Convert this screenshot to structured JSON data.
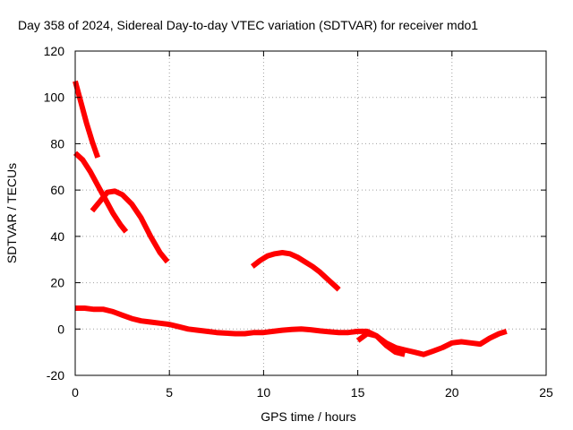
{
  "chart_data": {
    "type": "line",
    "title": "Day 358 of 2024, Sidereal Day-to-day VTEC variation (SDTVAR) for receiver mdo1",
    "xlabel": "GPS time / hours",
    "ylabel": "SDTVAR / TECUs",
    "xlim": [
      0,
      25
    ],
    "ylim": [
      -20,
      120
    ],
    "xticks": [
      0,
      5,
      10,
      15,
      20,
      25
    ],
    "yticks": [
      -20,
      0,
      20,
      40,
      60,
      80,
      100,
      120
    ],
    "grid": true,
    "series_color": "#ff0000",
    "series": [
      {
        "name": "arc-1",
        "x": [
          0.0,
          0.3,
          0.6,
          0.9,
          1.2
        ],
        "y": [
          107,
          98,
          89,
          81,
          74
        ]
      },
      {
        "name": "arc-2",
        "x": [
          0.0,
          0.4,
          0.8,
          1.2,
          1.6,
          2.0,
          2.4,
          2.7
        ],
        "y": [
          76,
          73,
          68,
          62,
          56,
          50,
          45,
          42
        ]
      },
      {
        "name": "arc-3",
        "x": [
          0.9,
          1.3,
          1.7,
          2.1,
          2.5,
          3.0,
          3.5,
          4.0,
          4.5,
          4.9
        ],
        "y": [
          51,
          55,
          59,
          59.5,
          58,
          54,
          48,
          40,
          33,
          29
        ]
      },
      {
        "name": "arc-4",
        "x": [
          9.4,
          9.8,
          10.2,
          10.6,
          11.0,
          11.4,
          11.8,
          12.2,
          12.6,
          13.0,
          13.4,
          13.8,
          14.0
        ],
        "y": [
          27,
          29.5,
          31.5,
          32.5,
          33,
          32.5,
          31,
          29,
          27,
          24.5,
          21.5,
          18.5,
          17
        ]
      },
      {
        "name": "arc-5",
        "x": [
          0.0,
          0.5,
          1.0,
          1.5,
          2.0,
          2.5,
          3.0,
          3.5,
          4.0,
          4.5,
          5.0,
          5.5,
          6.0,
          6.5,
          7.0,
          7.5,
          8.0,
          8.5,
          9.0,
          9.5,
          10.0,
          10.5,
          11.0,
          11.5,
          12.0,
          12.5,
          13.0,
          13.5,
          14.0,
          14.5,
          15.0,
          15.5,
          16.0,
          16.5,
          17.0,
          17.5,
          18.0,
          18.5,
          19.0,
          19.5,
          20.0,
          20.5,
          21.0,
          21.5,
          22.0,
          22.5,
          22.9
        ],
        "y": [
          9,
          9,
          8.5,
          8.5,
          7.5,
          6,
          4.5,
          3.5,
          3,
          2.5,
          2,
          1,
          0,
          -0.5,
          -1,
          -1.5,
          -1.8,
          -2,
          -2,
          -1.5,
          -1.5,
          -1,
          -0.5,
          -0.2,
          0,
          -0.3,
          -0.8,
          -1.2,
          -1.5,
          -1.5,
          -1,
          -1,
          -3,
          -6,
          -8,
          -9,
          -10,
          -11,
          -9.5,
          -8,
          -6,
          -5.5,
          -6,
          -6.5,
          -4,
          -2,
          -1
        ]
      },
      {
        "name": "arc-6",
        "x": [
          15.0,
          15.5,
          16.0,
          16.5,
          17.0,
          17.5
        ],
        "y": [
          -5,
          -2,
          -3,
          -7,
          -10,
          -11
        ]
      }
    ]
  }
}
